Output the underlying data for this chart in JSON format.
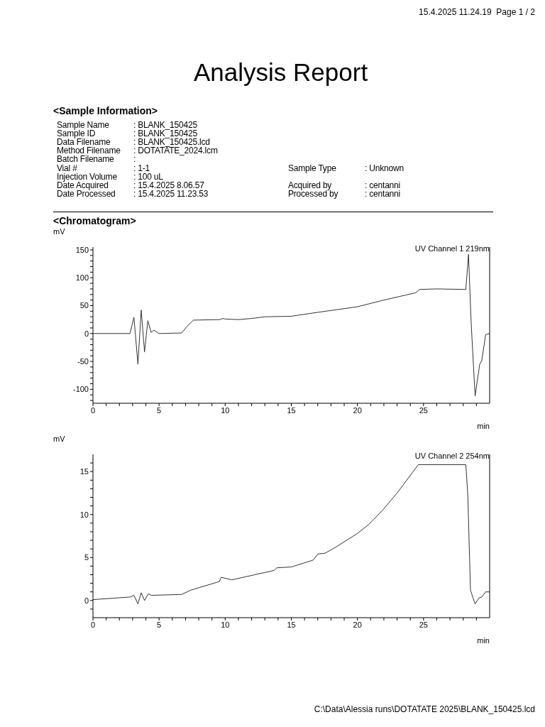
{
  "chart_data": [
    {
      "type": "other",
      "title": "Analysis Report",
      "annotations": [
        "15.4.2025 11.24.19  Page 1 / 2",
        "<Sample Information>",
        "Sample Name",
        ": BLANK_150425",
        "Sample ID",
        ": BLANK_150425",
        "Data Filename",
        ": BLANK_150425.lcd",
        "Method Filename",
        ": DOTATATE_2024.lcm",
        "Batch Filename",
        ":",
        "Vial #",
        ": 1-1",
        "Sample Type",
        ": Unknown",
        "Injection Volume",
        ": 100 uL",
        "Date Acquired",
        ": 15.4.2025 8.06.57",
        "Acquired by",
        ": centanni",
        "Date Processed",
        ": 15.4.2025 11.23.53",
        "Processed by",
        ": centanni",
        "<Chromatogram>",
        "C:\\Data\\Alessia runs\\DOTATATE 2025\\BLANK_150425.lcd"
      ]
    },
    {
      "type": "line",
      "title": "UV Channel 1 219nm",
      "xlabel": "min",
      "ylabel": "mV",
      "xlim": [
        0,
        30
      ],
      "ylim": [
        -125,
        155
      ],
      "marker": "none",
      "line_style": "solid",
      "xticks": [
        0,
        {
          "value": 1,
          "label": null
        },
        {
          "value": 2,
          "label": null
        },
        {
          "value": 3,
          "label": null
        },
        {
          "value": 4,
          "label": null
        },
        5,
        {
          "value": 6,
          "label": null
        },
        {
          "value": 7,
          "label": null
        },
        {
          "value": 8,
          "label": null
        },
        {
          "value": 9,
          "label": null
        },
        10,
        {
          "value": 11,
          "label": null
        },
        {
          "value": 12,
          "label": null
        },
        {
          "value": 13,
          "label": null
        },
        {
          "value": 14,
          "label": null
        },
        15,
        {
          "value": 16,
          "label": null
        },
        {
          "value": 17,
          "label": null
        },
        {
          "value": 18,
          "label": null
        },
        {
          "value": 19,
          "label": null
        },
        20,
        {
          "value": 21,
          "label": null
        },
        {
          "value": 22,
          "label": null
        },
        {
          "value": 23,
          "label": null
        },
        {
          "value": 24,
          "label": null
        },
        25,
        {
          "value": 26,
          "label": null
        },
        {
          "value": 27,
          "label": null
        },
        {
          "value": 28,
          "label": null
        },
        {
          "value": 29,
          "label": null
        }
      ],
      "yticks": [
        {
          "value": -120,
          "label": null
        },
        {
          "value": -110,
          "label": null
        },
        -100,
        {
          "value": -90,
          "label": null
        },
        {
          "value": -80,
          "label": null
        },
        {
          "value": -70,
          "label": null
        },
        {
          "value": -60,
          "label": null
        },
        -50,
        {
          "value": -40,
          "label": null
        },
        {
          "value": -30,
          "label": null
        },
        {
          "value": -20,
          "label": null
        },
        {
          "value": -10,
          "label": null
        },
        0,
        {
          "value": 10,
          "label": null
        },
        {
          "value": 20,
          "label": null
        },
        {
          "value": 30,
          "label": null
        },
        {
          "value": 40,
          "label": null
        },
        50,
        {
          "value": 60,
          "label": null
        },
        {
          "value": 70,
          "label": null
        },
        {
          "value": 80,
          "label": null
        },
        {
          "value": 90,
          "label": null
        },
        100,
        {
          "value": 110,
          "label": null
        },
        {
          "value": 120,
          "label": null
        },
        {
          "value": 130,
          "label": null
        },
        {
          "value": 140,
          "label": null
        },
        150
      ],
      "series": [
        {
          "color": "#333333",
          "x": [
            0,
            2.8,
            3.1,
            3.4,
            3.65,
            3.9,
            4.15,
            4.4,
            4.6,
            5.0,
            6.7,
            7.2,
            7.6,
            9.6,
            9.8,
            10,
            11,
            12,
            13,
            15,
            17,
            20,
            22,
            24.4,
            24.7,
            26,
            28.2,
            28.4,
            28.6,
            28.9,
            29.25,
            29.4,
            29.7,
            30
          ],
          "values": [
            0,
            0,
            29,
            -55,
            42,
            -33,
            23,
            2,
            6,
            0,
            1,
            15,
            24,
            25,
            27,
            26,
            25,
            27,
            30,
            31,
            38,
            48,
            60,
            73,
            79,
            80,
            79,
            142,
            20,
            -112,
            -55,
            -49,
            -2,
            0
          ]
        }
      ]
    },
    {
      "type": "line",
      "title": "UV Channel 2 254nm",
      "xlabel": "min",
      "ylabel": "mV",
      "xlim": [
        0,
        30
      ],
      "ylim": [
        -2,
        17
      ],
      "marker": "none",
      "line_style": "solid",
      "xticks": [
        0,
        {
          "value": 1,
          "label": null
        },
        {
          "value": 2,
          "label": null
        },
        {
          "value": 3,
          "label": null
        },
        {
          "value": 4,
          "label": null
        },
        5,
        {
          "value": 6,
          "label": null
        },
        {
          "value": 7,
          "label": null
        },
        {
          "value": 8,
          "label": null
        },
        {
          "value": 9,
          "label": null
        },
        10,
        {
          "value": 11,
          "label": null
        },
        {
          "value": 12,
          "label": null
        },
        {
          "value": 13,
          "label": null
        },
        {
          "value": 14,
          "label": null
        },
        15,
        {
          "value": 16,
          "label": null
        },
        {
          "value": 17,
          "label": null
        },
        {
          "value": 18,
          "label": null
        },
        {
          "value": 19,
          "label": null
        },
        20,
        {
          "value": 21,
          "label": null
        },
        {
          "value": 22,
          "label": null
        },
        {
          "value": 23,
          "label": null
        },
        {
          "value": 24,
          "label": null
        },
        25,
        {
          "value": 26,
          "label": null
        },
        {
          "value": 27,
          "label": null
        },
        {
          "value": 28,
          "label": null
        },
        {
          "value": 29,
          "label": null
        }
      ],
      "yticks": [
        {
          "value": -1,
          "label": null
        },
        0,
        {
          "value": 1,
          "label": null
        },
        {
          "value": 2,
          "label": null
        },
        {
          "value": 3,
          "label": null
        },
        {
          "value": 4,
          "label": null
        },
        5,
        {
          "value": 6,
          "label": null
        },
        {
          "value": 7,
          "label": null
        },
        {
          "value": 8,
          "label": null
        },
        {
          "value": 9,
          "label": null
        },
        10,
        {
          "value": 11,
          "label": null
        },
        {
          "value": 12,
          "label": null
        },
        {
          "value": 13,
          "label": null
        },
        {
          "value": 14,
          "label": null
        },
        15,
        {
          "value": 16,
          "label": null
        }
      ],
      "series": [
        {
          "color": "#333333",
          "x": [
            0,
            2.8,
            3.1,
            3.4,
            3.65,
            3.9,
            4.2,
            4.4,
            6.7,
            7.4,
            9.55,
            9.7,
            10.5,
            13.7,
            13.9,
            15,
            16.65,
            17.0,
            17.55,
            18.35,
            20,
            20.9,
            21.9,
            23,
            24.6,
            28.2,
            28.35,
            28.55,
            28.9,
            29.2,
            29.4,
            29.7,
            30
          ],
          "values": [
            0.1,
            0.4,
            0.6,
            -0.4,
            0.9,
            0,
            0.8,
            0.6,
            0.7,
            1.2,
            2.2,
            2.7,
            2.4,
            3.5,
            3.8,
            3.9,
            4.7,
            5.4,
            5.5,
            6.2,
            7.8,
            8.9,
            10.5,
            12.5,
            15.8,
            15.8,
            12.2,
            1.2,
            -0.4,
            0.3,
            0.4,
            1.0,
            1.0
          ]
        }
      ]
    }
  ]
}
